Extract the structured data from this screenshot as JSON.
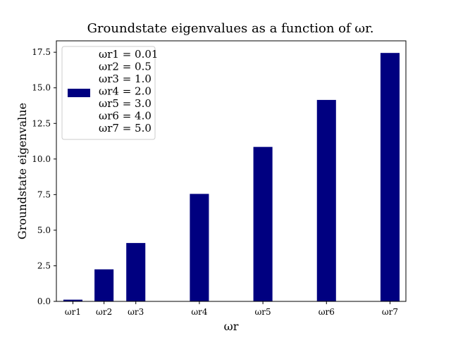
{
  "chart_data": {
    "type": "bar",
    "title": "Groundstate eigenvalues as a function of ωr.",
    "xlabel": "ωr",
    "ylabel": "Groundstate eigenvalue",
    "x": [
      0.01,
      0.5,
      1.0,
      2.0,
      3.0,
      4.0,
      5.0
    ],
    "categories": [
      "ωr1",
      "ωr2",
      "ωr3",
      "ωr4",
      "ωr5",
      "ωr6",
      "ωr7"
    ],
    "values": [
      0.12,
      2.25,
      4.1,
      7.55,
      10.85,
      14.15,
      17.45
    ],
    "xlim": [
      -0.25,
      5.25
    ],
    "ylim": [
      0,
      18.3
    ],
    "yticks": [
      0.0,
      2.5,
      5.0,
      7.5,
      10.0,
      12.5,
      15.0,
      17.5
    ],
    "ytick_labels": [
      "0.0",
      "2.5",
      "5.0",
      "7.5",
      "10.0",
      "12.5",
      "15.0",
      "17.5"
    ],
    "legend_entries": [
      "ωr1 = 0.01",
      "ωr2 = 0.5",
      "ωr3 = 1.0",
      "ωr4 = 2.0",
      "ωr5 = 3.0",
      "ωr6 = 4.0",
      "ωr7 = 5.0"
    ],
    "legend_placement": "top-left",
    "grid": false,
    "bar_color": "#000080"
  }
}
